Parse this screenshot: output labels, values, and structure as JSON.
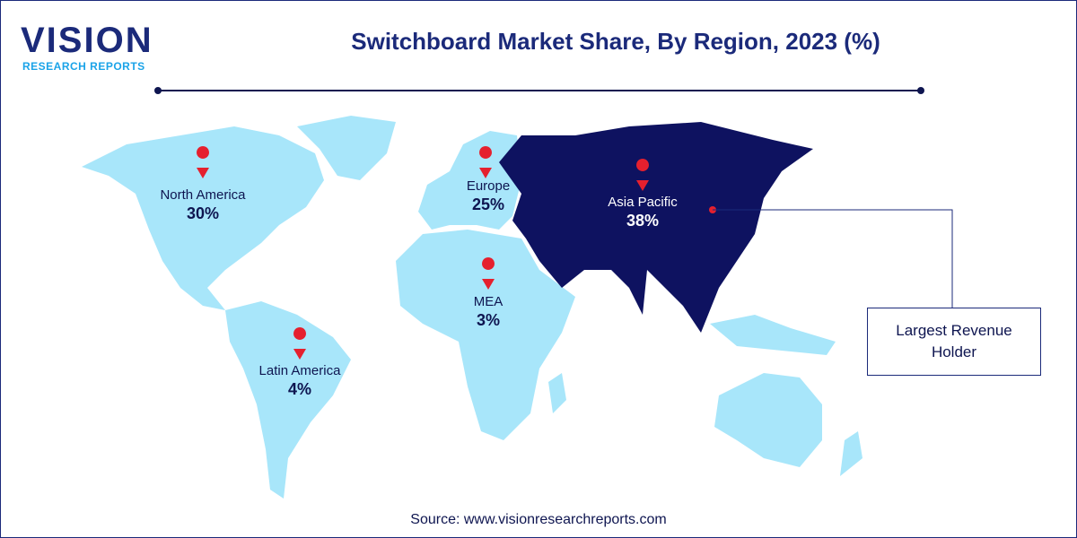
{
  "logo": {
    "name": "VISION",
    "tagline": "RESEARCH REPORTS"
  },
  "title": "Switchboard Market Share, By Region, 2023 (%)",
  "regions": [
    {
      "name": "North America",
      "share": "30%"
    },
    {
      "name": "Europe",
      "share": "25%"
    },
    {
      "name": "Asia Pacific",
      "share": "38%"
    },
    {
      "name": "MEA",
      "share": "3%"
    },
    {
      "name": "Latin America",
      "share": "4%"
    }
  ],
  "callout": "Largest Revenue Holder",
  "source": "Source: www.visionresearchreports.com"
}
